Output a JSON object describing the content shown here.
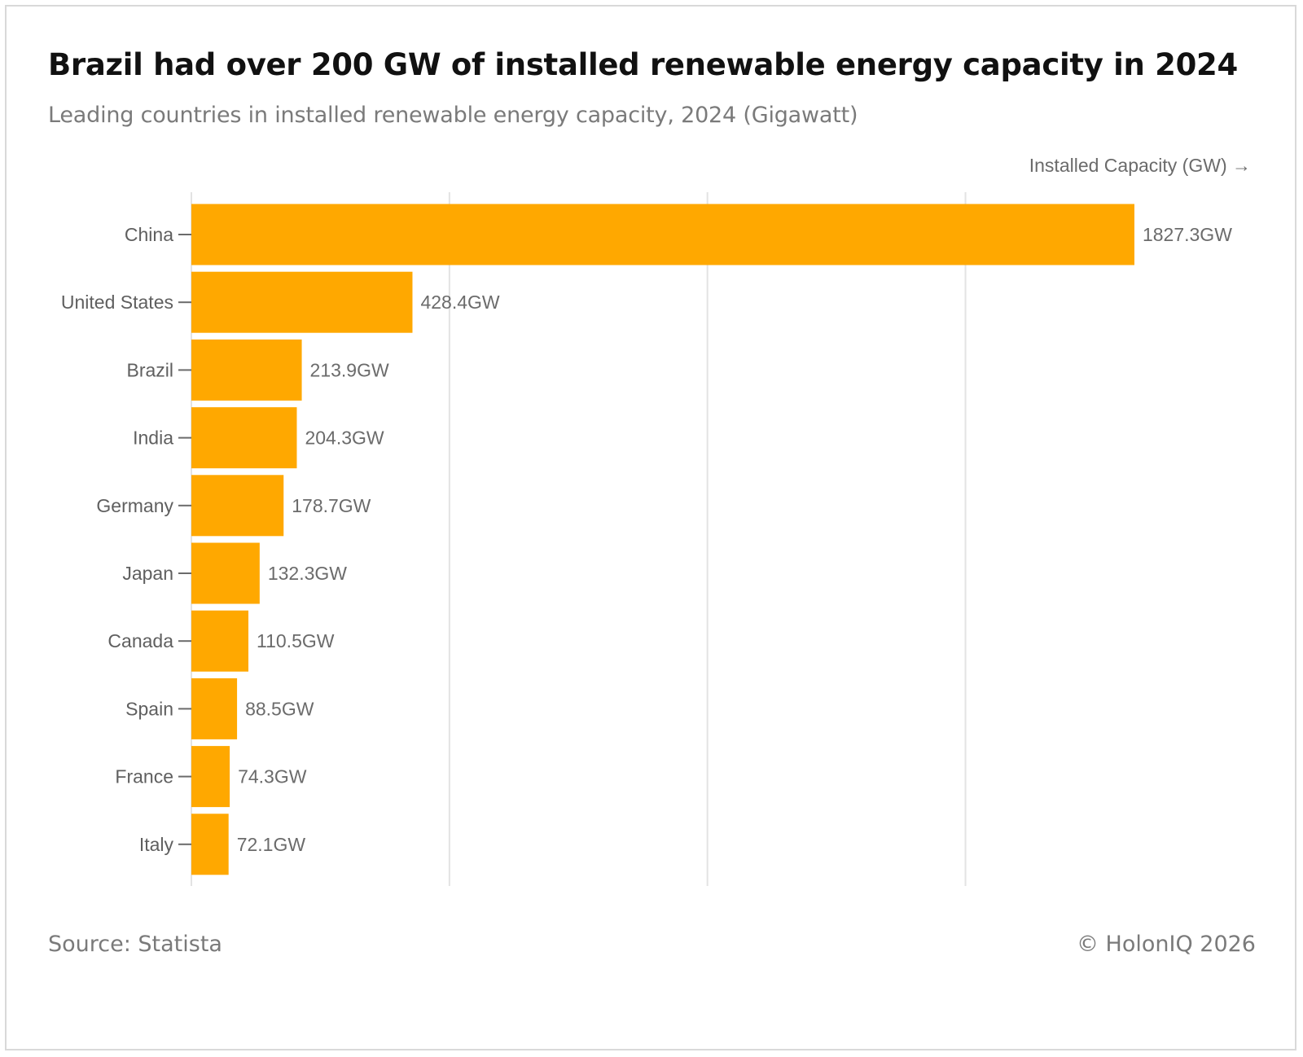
{
  "title": "Brazil had over 200 GW of installed renewable energy capacity in 2024",
  "subtitle": "Leading countries in installed renewable energy capacity, 2024 (Gigawatt)",
  "x_axis_label": "Installed Capacity (GW) →",
  "source": "Source: Statista",
  "copyright": "© HolonIQ 2026",
  "colors": {
    "bar": "#FFA800",
    "grid": "#e3e3e3",
    "axis": "#6b6b6b"
  },
  "chart_data": {
    "type": "bar",
    "orientation": "horizontal",
    "categories": [
      "China",
      "United States",
      "Brazil",
      "India",
      "Germany",
      "Japan",
      "Canada",
      "Spain",
      "France",
      "Italy"
    ],
    "values": [
      1827.3,
      428.4,
      213.9,
      204.3,
      178.7,
      132.3,
      110.5,
      88.5,
      74.3,
      72.1
    ],
    "value_labels": [
      "1827.3GW",
      "428.4GW",
      "213.9GW",
      "204.3GW",
      "178.7GW",
      "132.3GW",
      "110.5GW",
      "88.5GW",
      "74.3GW",
      "72.1GW"
    ],
    "xlabel": "Installed Capacity (GW) →",
    "ylabel": "",
    "xlim": [
      0,
      2000
    ],
    "grid_values": [
      0,
      500,
      1000,
      1500
    ],
    "grid": true,
    "legend": "none"
  }
}
